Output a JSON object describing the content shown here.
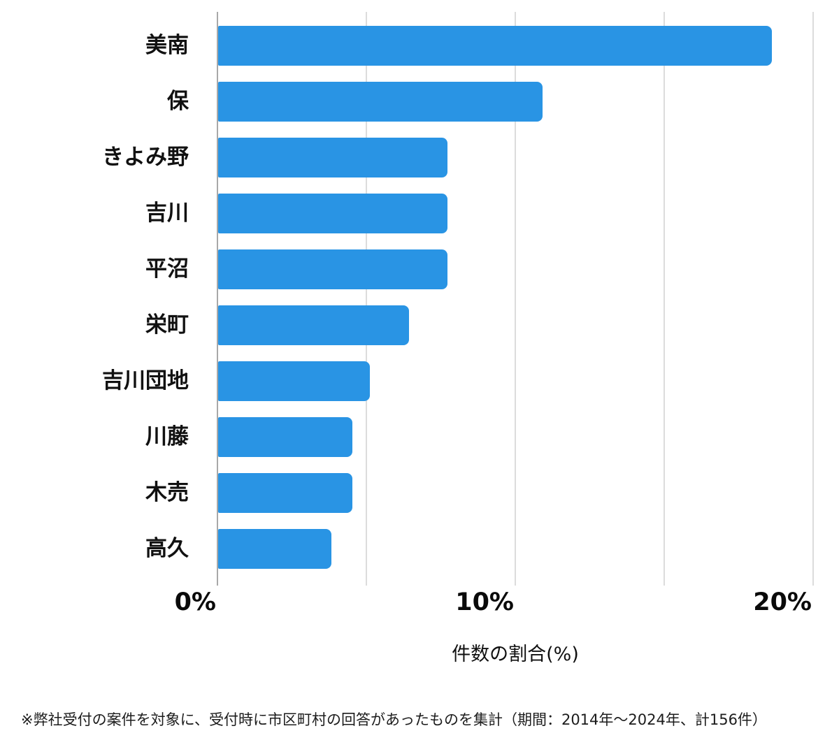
{
  "chart_data": {
    "type": "bar",
    "orientation": "horizontal",
    "categories": [
      "美南",
      "保",
      "きよみ野",
      "吉川",
      "平沼",
      "栄町",
      "吉川団地",
      "川藤",
      "木売",
      "高久"
    ],
    "values": [
      18.6,
      10.9,
      7.7,
      7.7,
      7.7,
      6.4,
      5.1,
      4.5,
      4.5,
      3.8
    ],
    "title": "",
    "xlabel": "件数の割合(%)",
    "ylabel": "",
    "xlim": [
      0,
      20
    ],
    "xticks": [
      {
        "value": 0,
        "label": "0%"
      },
      {
        "value": 10,
        "label": "10%"
      },
      {
        "value": 20,
        "label": "20%"
      }
    ],
    "gridline_step": 5,
    "grid": "on",
    "legend": "none",
    "bar_color": "#2994e4",
    "grid_color": "#dcdcdc",
    "axis_line_color": "#a8a8a8"
  },
  "footnote": "※弊社受付の案件を対象に、受付時に市区町村の回答があったものを集計（期間：2014年～2024年、計156件）"
}
